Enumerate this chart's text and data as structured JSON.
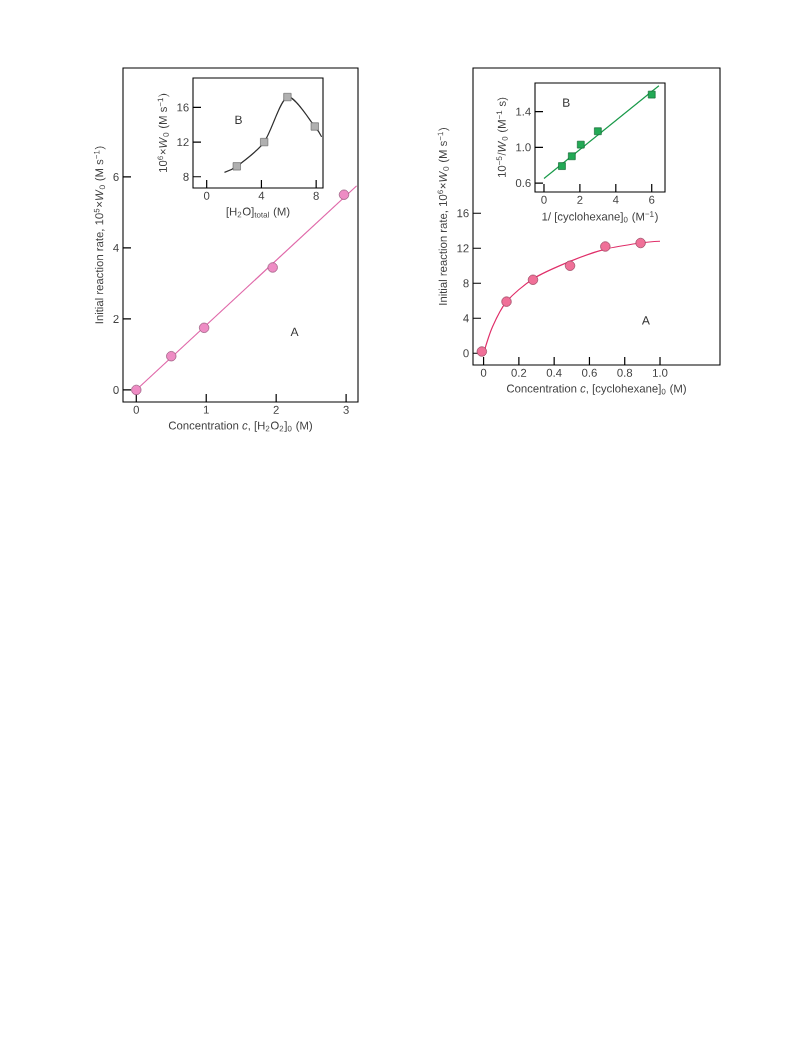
{
  "chart_data": [
    {
      "type": "scatter",
      "xlabel": "Concentration *c*,  [H$_{2}$O$_{2}$]$_{0}$ (M)",
      "ylabel": "Initial reaction rate, 10$^{5}$×*W*$_{0}$ (M s$^{−1}$)",
      "annotations": [
        "A"
      ],
      "xlim": [
        -0.19,
        3.17
      ],
      "ylim": [
        -0.34,
        9.07
      ],
      "xticks": [
        0,
        1,
        2,
        3
      ],
      "yticks": [
        0,
        2,
        4,
        6
      ],
      "series": [
        {
          "type": "line",
          "color": "#e06aaa",
          "x": [
            0,
            3.15
          ],
          "values": [
            0,
            5.75
          ]
        },
        {
          "color": "#ee8cc4",
          "marker": "circle",
          "x": [
            0,
            0.5,
            0.97,
            1.95,
            2.97
          ],
          "values": [
            0,
            0.95,
            1.75,
            3.45,
            5.5
          ]
        }
      ]
    },
    {
      "type": "scatter",
      "xlabel": "[H$_{2}$O]$_{total}$ (M)",
      "ylabel": "10$^{6}$×*W*$_{0}$ (M s$^{−1}$)",
      "annotations": [
        "B"
      ],
      "xlim": [
        -1.0,
        8.5
      ],
      "ylim": [
        6.7,
        19.4
      ],
      "xticks": [
        0,
        4,
        8
      ],
      "yticks": [
        8,
        12,
        16
      ],
      "series": [
        {
          "type": "line",
          "color": "#303030",
          "x": [
            1.3,
            2.2,
            4.2,
            5.9,
            7.9,
            8.4
          ],
          "values": [
            8.5,
            9.2,
            12.0,
            17.2,
            13.8,
            12.6
          ]
        },
        {
          "color": "#b0b0b0",
          "marker": "square",
          "x": [
            2.2,
            4.2,
            5.9,
            7.9
          ],
          "values": [
            9.2,
            12.0,
            17.2,
            13.8
          ]
        }
      ]
    },
    {
      "type": "scatter",
      "xlabel": "Concentration *c*,  [cyclohexane]$_{0}$ (M)",
      "ylabel": "Initial reaction rate, 10$^{6}$×*W*$_{0}$ (M s$^{−1}$)",
      "annotations": [
        "A"
      ],
      "xlim": [
        -0.06,
        1.34
      ],
      "ylim": [
        -1.34,
        32.6
      ],
      "xticks": [
        0,
        0.2,
        0.4,
        0.6,
        0.8,
        {
          "value": 1,
          "label": "1.0"
        }
      ],
      "yticks": [
        0,
        4,
        8,
        12,
        16
      ],
      "series": [
        {
          "type": "line",
          "color": "#e0306a",
          "x": [
            0,
            0.05,
            0.13,
            0.28,
            0.49,
            0.69,
            0.89,
            1.0
          ],
          "values": [
            0,
            3,
            5.9,
            8.5,
            10.5,
            11.9,
            12.6,
            12.8
          ]
        },
        {
          "color": "#f07098",
          "marker": "circle",
          "x": [
            -0.01,
            0.13,
            0.28,
            0.49,
            0.69,
            0.89
          ],
          "values": [
            0.2,
            5.9,
            8.4,
            10,
            12.2,
            12.6
          ]
        }
      ]
    },
    {
      "type": "scatter",
      "xlabel": "1/ [cyclohexane]$_{0}$ (M$^{−1}$)",
      "ylabel": "10$^{−5}$/*W*$_{0}$ (M$^{−1}$ s)",
      "annotations": [
        "B"
      ],
      "xlim": [
        -0.5,
        6.74
      ],
      "ylim": [
        0.5,
        1.72
      ],
      "xticks": [
        0,
        2,
        4,
        6
      ],
      "yticks": [
        0.6,
        {
          "value": 1,
          "label": "1.0"
        },
        1.4
      ],
      "series": [
        {
          "type": "line",
          "color": "#1a9a4a",
          "x": [
            0,
            6.4
          ],
          "values": [
            0.65,
            1.69
          ]
        },
        {
          "color": "#22aa55",
          "marker": "square",
          "x": [
            1.0,
            1.55,
            2.05,
            3.0,
            6.0
          ],
          "values": [
            0.79,
            0.9,
            1.03,
            1.18,
            1.59
          ]
        }
      ]
    }
  ]
}
